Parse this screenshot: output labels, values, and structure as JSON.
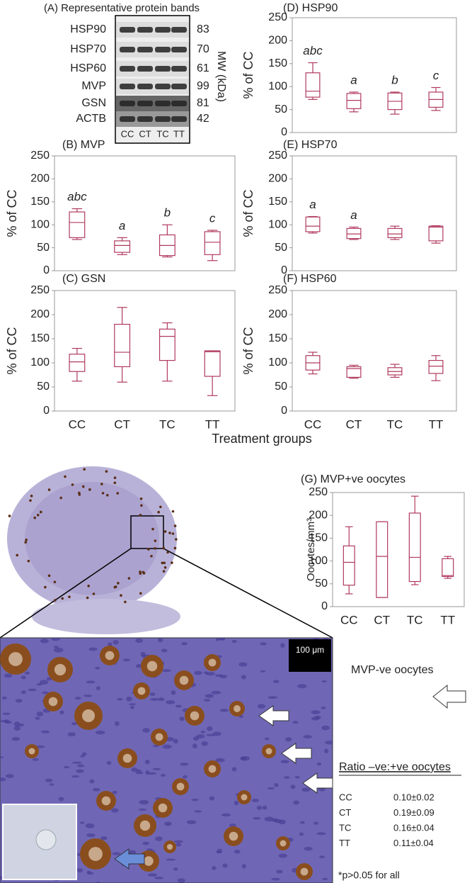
{
  "chart_data": [
    {
      "type": "box",
      "title": "(D) HSP90",
      "y_label": "% of CC",
      "ylim": [
        0,
        250
      ],
      "yticks": [
        0,
        50,
        100,
        150,
        200,
        250
      ],
      "color": "#b03a5e",
      "min": [
        72,
        45,
        40,
        48
      ],
      "q1": [
        77,
        52,
        50,
        55
      ],
      "median": [
        90,
        70,
        68,
        72
      ],
      "q3": [
        130,
        85,
        86,
        88
      ],
      "max": [
        152,
        88,
        88,
        98
      ],
      "annotations": [
        "abc",
        "a",
        "b",
        "c"
      ]
    },
    {
      "type": "box",
      "title": "(B) MVP",
      "y_label": "% of CC",
      "ylim": [
        0,
        250
      ],
      "yticks": [
        0,
        50,
        100,
        150,
        200,
        250
      ],
      "color": "#b03a5e",
      "min": [
        68,
        35,
        30,
        22
      ],
      "q1": [
        72,
        40,
        33,
        35
      ],
      "median": [
        105,
        55,
        55,
        62
      ],
      "q3": [
        128,
        65,
        78,
        85
      ],
      "max": [
        135,
        72,
        100,
        88
      ],
      "annotations": [
        "abc",
        "a",
        "b",
        "c"
      ]
    },
    {
      "type": "box",
      "title": "(E) HSP70",
      "y_label": "% of CC",
      "ylim": [
        0,
        250
      ],
      "yticks": [
        0,
        50,
        100,
        150,
        200,
        250
      ],
      "color": "#b03a5e",
      "min": [
        82,
        68,
        68,
        60
      ],
      "q1": [
        85,
        70,
        72,
        65
      ],
      "median": [
        97,
        80,
        80,
        95
      ],
      "q3": [
        117,
        92,
        92,
        97
      ],
      "max": [
        118,
        95,
        97,
        98
      ],
      "annotations": [
        "a",
        "a",
        null,
        null
      ]
    },
    {
      "type": "box",
      "title": "(C) GSN",
      "y_label": "% of CC",
      "ylim": [
        0,
        250
      ],
      "yticks": [
        0,
        50,
        100,
        150,
        200,
        250
      ],
      "color": "#b03a5e",
      "categories": [
        "CC",
        "CT",
        "TC",
        "TT"
      ],
      "min": [
        62,
        60,
        62,
        32
      ],
      "q1": [
        82,
        92,
        105,
        72
      ],
      "median": [
        102,
        122,
        155,
        123
      ],
      "q3": [
        118,
        180,
        170,
        125
      ],
      "max": [
        130,
        215,
        183,
        125
      ]
    },
    {
      "type": "box",
      "title": "(F) HSP60",
      "y_label": "% of CC",
      "ylim": [
        0,
        250
      ],
      "yticks": [
        0,
        50,
        100,
        150,
        200,
        250
      ],
      "color": "#b03a5e",
      "categories": [
        "CC",
        "CT",
        "TC",
        "TT"
      ],
      "min": [
        77,
        68,
        70,
        63
      ],
      "q1": [
        85,
        70,
        75,
        78
      ],
      "median": [
        100,
        88,
        82,
        93
      ],
      "q3": [
        115,
        92,
        90,
        105
      ],
      "max": [
        122,
        95,
        97,
        115
      ]
    },
    {
      "type": "box",
      "title": "(G) MVP+ve oocytes",
      "y_label": "Oocytes/mm³",
      "ylim": [
        0,
        250
      ],
      "yticks": [
        0,
        50,
        100,
        150,
        200,
        250
      ],
      "color": "#b03a5e",
      "categories": [
        "CC",
        "CT",
        "TC",
        "TT"
      ],
      "min": [
        28,
        20,
        48,
        62
      ],
      "q1": [
        47,
        20,
        55,
        66
      ],
      "median": [
        97,
        110,
        108,
        68
      ],
      "q3": [
        133,
        186,
        205,
        105
      ],
      "max": [
        175,
        186,
        242,
        110
      ]
    }
  ],
  "x_label": "Treatment groups",
  "blot": {
    "title": "(A) Representative protein bands",
    "proteins": [
      "HSP90",
      "HSP70",
      "HSP60",
      "MVP",
      "GSN",
      "ACTB"
    ],
    "mw": [
      "83",
      "70",
      "61",
      "99",
      "81",
      "42"
    ],
    "mw_label": "MW (kDa)",
    "lanes": [
      "CC",
      "CT",
      "TC",
      "TT"
    ]
  },
  "histology": {
    "scale_bar": "100 μm",
    "arrow_label": "MVP-ve oocytes",
    "ratio_title": "Ratio –ve:+ve oocytes",
    "ratio_rows": [
      [
        "CC",
        "0.10±0.02"
      ],
      [
        "CT",
        "0.19±0.09"
      ],
      [
        "TC",
        "0.16±0.04"
      ],
      [
        "TT",
        "0.11±0.04"
      ]
    ],
    "footnote": "*p>0.05 for all"
  }
}
